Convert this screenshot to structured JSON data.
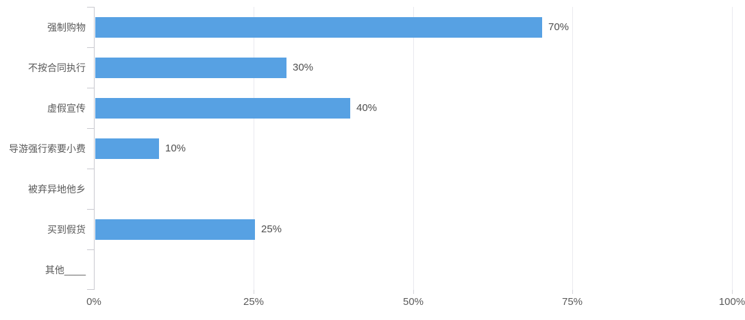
{
  "chart_data": {
    "type": "bar",
    "orientation": "horizontal",
    "title": "",
    "categories": [
      "强制购物",
      "不按合同执行",
      "虚假宣传",
      "导游强行索要小费",
      "被弃异地他乡",
      "买到假货",
      "其他____"
    ],
    "values": [
      70,
      30,
      40,
      10,
      0,
      25,
      0
    ],
    "value_labels": [
      "70%",
      "30%",
      "40%",
      "10%",
      "",
      "25%",
      ""
    ],
    "xlabel": "",
    "ylabel": "",
    "xlim": [
      0,
      100
    ],
    "x_tick_values": [
      0,
      25,
      50,
      75,
      100
    ],
    "x_tick_labels": [
      "0%",
      "25%",
      "50%",
      "75%",
      "100%"
    ],
    "grid": "vertical",
    "legend_position": "none",
    "colors": {
      "bar": "#57a1e3",
      "axis_line": "#c9c9cf",
      "gridline": "#e9e9ef",
      "category_label": "#595959",
      "value_label": "#4d4d4d",
      "tick_label": "#595959",
      "background": "#ffffff"
    }
  }
}
